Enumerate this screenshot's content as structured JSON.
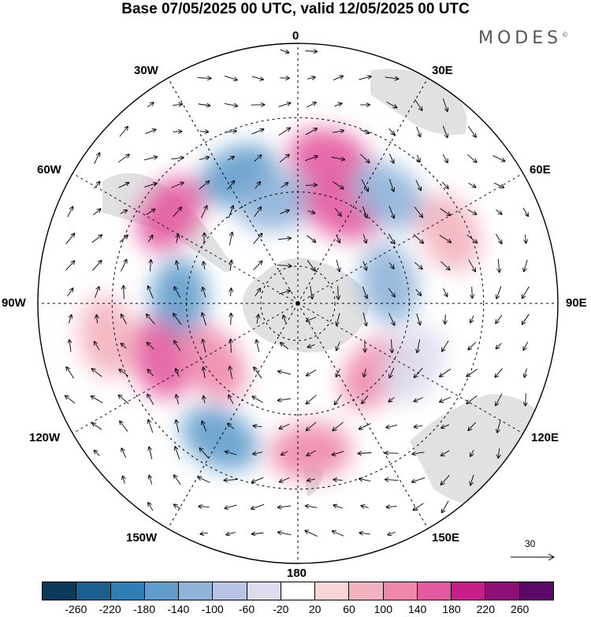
{
  "title": "Base 07/05/2025 00 UTC, valid 12/05/2025 00 UTC",
  "brand": "MODES",
  "brand_mark": "©",
  "longitudes": {
    "top": "0",
    "bottom": "180",
    "left": "90W",
    "right": "90E",
    "upper_left_1": "30W",
    "upper_left_2": "60W",
    "upper_right_1": "30E",
    "upper_right_2": "60E",
    "lower_left_1": "120W",
    "lower_left_2": "150W",
    "lower_right_1": "120E",
    "lower_right_2": "150E"
  },
  "reference_vector": "30",
  "colorbar": {
    "colors": [
      "#0b3a5a",
      "#1b5f8f",
      "#2f7fb6",
      "#5f9ccb",
      "#8fb3d9",
      "#b7c4e4",
      "#dcdcee",
      "#ffffff",
      "#f8d6d8",
      "#f3b2bf",
      "#ee88ac",
      "#e35aa0",
      "#c61f8a",
      "#8e0f78",
      "#5a0a66"
    ],
    "ticks": [
      "-260",
      "-220",
      "-180",
      "-140",
      "-100",
      "-60",
      "-20",
      "20",
      "60",
      "100",
      "140",
      "180",
      "220",
      "260"
    ]
  },
  "map": {
    "projection": "south polar stereographic",
    "anomaly_cells": [
      {
        "lon": -25,
        "lat": -52,
        "value": -170
      },
      {
        "lon": -12,
        "lat": -62,
        "value": -130
      },
      {
        "lon": 12,
        "lat": -50,
        "value": 170
      },
      {
        "lon": 25,
        "lat": -62,
        "value": 150
      },
      {
        "lon": 40,
        "lat": -52,
        "value": -140
      },
      {
        "lon": 65,
        "lat": -45,
        "value": 80
      },
      {
        "lon": 78,
        "lat": -65,
        "value": -110
      },
      {
        "lon": -55,
        "lat": -48,
        "value": 150
      },
      {
        "lon": -88,
        "lat": -58,
        "value": -180
      },
      {
        "lon": -112,
        "lat": -50,
        "value": 160
      },
      {
        "lon": -125,
        "lat": -62,
        "value": 120
      },
      {
        "lon": -150,
        "lat": -48,
        "value": -150
      },
      {
        "lon": 175,
        "lat": -50,
        "value": 100
      },
      {
        "lon": 132,
        "lat": -62,
        "value": 100
      },
      {
        "lon": 118,
        "lat": -55,
        "value": -60
      },
      {
        "lon": -100,
        "lat": -38,
        "value": 60
      }
    ]
  }
}
